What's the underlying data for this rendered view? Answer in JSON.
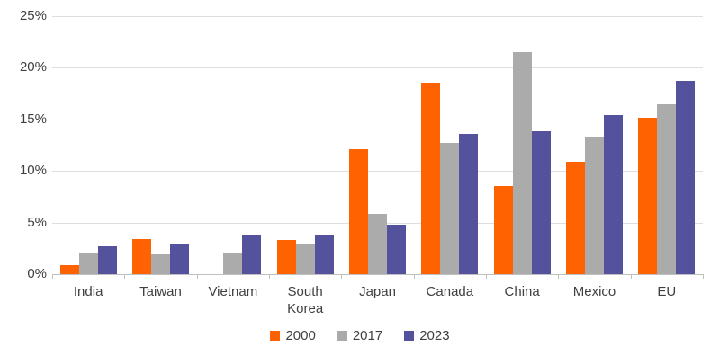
{
  "chart_data": {
    "type": "bar",
    "title": "",
    "xlabel": "",
    "ylabel": "",
    "categories": [
      "India",
      "Taiwan",
      "Vietnam",
      "South Korea",
      "Japan",
      "Canada",
      "China",
      "Mexico",
      "EU"
    ],
    "series": [
      {
        "name": "2000",
        "color": "#ff6200",
        "values": [
          0.9,
          3.4,
          0,
          3.3,
          12.1,
          18.5,
          8.5,
          10.9,
          15.1
        ]
      },
      {
        "name": "2017",
        "color": "#ababab",
        "values": [
          2.1,
          1.9,
          2.0,
          3.0,
          5.8,
          12.7,
          21.5,
          13.3,
          16.4
        ]
      },
      {
        "name": "2023",
        "color": "#54519d",
        "values": [
          2.7,
          2.9,
          3.7,
          3.8,
          4.8,
          13.6,
          13.8,
          15.4,
          18.7
        ]
      }
    ],
    "ylim": [
      0,
      25
    ],
    "ytick_step": 5,
    "yticks": [
      "0%",
      "5%",
      "10%",
      "15%",
      "20%",
      "25%"
    ],
    "grid": true,
    "legend_position": "bottom"
  },
  "style": {
    "gridline_color": "#dedede",
    "axis_color": "#bfbfbf",
    "text_color": "#404040",
    "background": "#ffffff"
  }
}
